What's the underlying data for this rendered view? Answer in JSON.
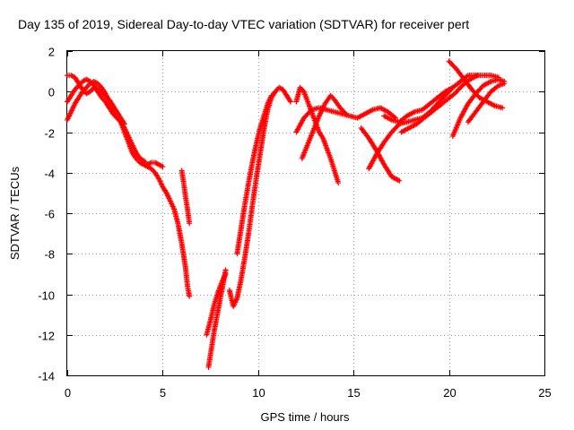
{
  "chart_data": {
    "type": "scatter",
    "title": "Day 135 of 2019, Sidereal Day-to-day VTEC variation (SDTVAR) for receiver pert",
    "xlabel": "GPS time / hours",
    "ylabel": "SDTVAR / TECUs",
    "xlim": [
      0,
      25
    ],
    "ylim": [
      -14,
      2
    ],
    "xticks": [
      0,
      5,
      10,
      15,
      20,
      25
    ],
    "yticks": [
      -14,
      -12,
      -10,
      -8,
      -6,
      -4,
      -2,
      0,
      2
    ],
    "grid": true,
    "marker": "plus",
    "color": "#ff0000",
    "traces": [
      [
        [
          0.0,
          -1.4
        ],
        [
          0.2,
          -1.0
        ],
        [
          0.4,
          -0.6
        ],
        [
          0.6,
          -0.3
        ],
        [
          0.8,
          0.0
        ],
        [
          1.0,
          0.2
        ],
        [
          1.2,
          0.4
        ],
        [
          1.4,
          0.5
        ],
        [
          1.6,
          0.4
        ],
        [
          1.8,
          0.2
        ],
        [
          2.0,
          -0.1
        ],
        [
          2.2,
          -0.5
        ],
        [
          2.4,
          -0.9
        ],
        [
          2.6,
          -1.2
        ],
        [
          2.8,
          -1.5
        ],
        [
          3.0,
          -2.0
        ],
        [
          3.2,
          -2.5
        ],
        [
          3.4,
          -3.0
        ],
        [
          3.6,
          -3.3
        ],
        [
          3.8,
          -3.5
        ],
        [
          4.0,
          -3.6
        ],
        [
          4.2,
          -3.7
        ],
        [
          4.4,
          -3.8
        ],
        [
          4.6,
          -4.0
        ],
        [
          4.8,
          -4.3
        ],
        [
          5.0,
          -4.7
        ],
        [
          5.2,
          -5.0
        ],
        [
          5.4,
          -5.4
        ],
        [
          5.6,
          -5.8
        ],
        [
          5.8,
          -6.5
        ],
        [
          6.0,
          -7.5
        ],
        [
          6.2,
          -8.7
        ],
        [
          6.3,
          -9.6
        ],
        [
          6.4,
          -10.1
        ]
      ],
      [
        [
          0.0,
          0.8
        ],
        [
          0.2,
          0.8
        ],
        [
          0.4,
          0.7
        ],
        [
          0.6,
          0.4
        ],
        [
          0.8,
          0.1
        ],
        [
          1.0,
          -0.1
        ],
        [
          1.2,
          0.0
        ],
        [
          1.4,
          0.2
        ],
        [
          1.6,
          0.0
        ],
        [
          1.8,
          -0.3
        ],
        [
          2.0,
          -0.5
        ],
        [
          2.2,
          -0.8
        ],
        [
          2.4,
          -1.1
        ],
        [
          2.6,
          -1.3
        ],
        [
          2.8,
          -1.5
        ],
        [
          3.0,
          -1.8
        ],
        [
          3.2,
          -2.2
        ],
        [
          3.4,
          -2.6
        ],
        [
          3.6,
          -3.0
        ],
        [
          3.8,
          -3.3
        ],
        [
          4.0,
          -3.4
        ],
        [
          4.2,
          -3.6
        ],
        [
          4.4,
          -3.5
        ],
        [
          4.6,
          -3.5
        ],
        [
          4.8,
          -3.6
        ],
        [
          5.0,
          -3.7
        ]
      ],
      [
        [
          0.0,
          -0.5
        ],
        [
          0.2,
          -0.2
        ],
        [
          0.4,
          0.1
        ],
        [
          0.6,
          0.3
        ],
        [
          0.8,
          0.5
        ],
        [
          1.0,
          0.6
        ],
        [
          1.2,
          0.5
        ],
        [
          1.4,
          0.3
        ],
        [
          1.6,
          0.1
        ],
        [
          1.8,
          0.0
        ],
        [
          2.0,
          -0.2
        ],
        [
          2.2,
          -0.4
        ],
        [
          2.4,
          -0.7
        ],
        [
          2.6,
          -1.0
        ],
        [
          2.8,
          -1.3
        ],
        [
          3.0,
          -1.6
        ]
      ],
      [
        [
          6.0,
          -3.9
        ],
        [
          6.1,
          -4.5
        ],
        [
          6.2,
          -5.2
        ],
        [
          6.3,
          -5.8
        ],
        [
          6.4,
          -6.5
        ]
      ],
      [
        [
          7.4,
          -13.6
        ],
        [
          7.5,
          -13.0
        ],
        [
          7.6,
          -12.4
        ],
        [
          7.7,
          -11.8
        ],
        [
          7.8,
          -11.3
        ],
        [
          7.9,
          -10.8
        ],
        [
          8.0,
          -10.3
        ],
        [
          8.1,
          -9.8
        ],
        [
          8.2,
          -9.3
        ],
        [
          8.3,
          -8.8
        ]
      ],
      [
        [
          7.3,
          -12.0
        ],
        [
          7.5,
          -11.3
        ],
        [
          7.7,
          -10.5
        ],
        [
          7.9,
          -9.9
        ],
        [
          8.1,
          -9.4
        ],
        [
          8.3,
          -9.0
        ]
      ],
      [
        [
          8.5,
          -9.8
        ],
        [
          8.7,
          -10.6
        ],
        [
          8.9,
          -10.2
        ],
        [
          9.1,
          -9.3
        ],
        [
          9.3,
          -8.2
        ],
        [
          9.5,
          -7.0
        ],
        [
          9.7,
          -5.6
        ],
        [
          9.9,
          -4.3
        ],
        [
          10.1,
          -3.1
        ],
        [
          10.3,
          -1.9
        ],
        [
          10.5,
          -0.9
        ],
        [
          10.7,
          -0.3
        ],
        [
          10.9,
          0.0
        ],
        [
          11.1,
          0.2
        ],
        [
          11.3,
          0.1
        ],
        [
          11.5,
          -0.2
        ],
        [
          11.7,
          -0.5
        ]
      ],
      [
        [
          8.9,
          -8.0
        ],
        [
          9.1,
          -6.8
        ],
        [
          9.3,
          -5.6
        ],
        [
          9.5,
          -4.5
        ],
        [
          9.7,
          -3.5
        ],
        [
          9.9,
          -2.6
        ],
        [
          10.1,
          -1.8
        ],
        [
          10.3,
          -1.2
        ],
        [
          10.5,
          -0.6
        ],
        [
          10.7,
          -0.2
        ]
      ],
      [
        [
          12.0,
          -0.5
        ],
        [
          12.2,
          0.2
        ],
        [
          12.4,
          0.0
        ],
        [
          12.6,
          -0.5
        ],
        [
          12.8,
          -1.0
        ],
        [
          13.0,
          -1.5
        ],
        [
          13.2,
          -2.0
        ],
        [
          13.4,
          -2.3
        ],
        [
          13.6,
          -2.8
        ],
        [
          13.8,
          -3.3
        ],
        [
          14.0,
          -3.9
        ],
        [
          14.2,
          -4.5
        ]
      ],
      [
        [
          12.3,
          -3.3
        ],
        [
          12.6,
          -2.6
        ],
        [
          12.9,
          -1.9
        ],
        [
          13.2,
          -1.2
        ],
        [
          13.5,
          -0.6
        ],
        [
          13.8,
          -0.2
        ],
        [
          14.0,
          -0.4
        ],
        [
          14.3,
          -0.8
        ],
        [
          14.6,
          -1.1
        ]
      ],
      [
        [
          12.0,
          -2.0
        ],
        [
          12.4,
          -1.3
        ],
        [
          12.8,
          -0.9
        ],
        [
          13.2,
          -0.8
        ],
        [
          13.6,
          -0.9
        ],
        [
          14.0,
          -1.0
        ],
        [
          14.4,
          -1.1
        ],
        [
          14.8,
          -1.2
        ],
        [
          15.2,
          -1.3
        ],
        [
          15.6,
          -1.1
        ],
        [
          16.0,
          -0.9
        ],
        [
          16.4,
          -0.8
        ],
        [
          16.8,
          -1.0
        ],
        [
          17.2,
          -1.3
        ]
      ],
      [
        [
          15.8,
          -3.8
        ],
        [
          16.2,
          -3.1
        ],
        [
          16.6,
          -2.5
        ],
        [
          17.0,
          -2.0
        ],
        [
          17.4,
          -1.6
        ],
        [
          17.8,
          -1.5
        ],
        [
          18.2,
          -1.4
        ],
        [
          18.6,
          -1.3
        ],
        [
          19.0,
          -1.0
        ],
        [
          19.4,
          -0.6
        ],
        [
          19.8,
          -0.2
        ],
        [
          20.2,
          0.2
        ],
        [
          20.6,
          0.5
        ],
        [
          21.0,
          0.8
        ],
        [
          21.4,
          0.8
        ],
        [
          21.8,
          0.8
        ],
        [
          22.2,
          0.8
        ],
        [
          22.6,
          0.7
        ]
      ],
      [
        [
          15.4,
          -1.8
        ],
        [
          15.8,
          -2.3
        ],
        [
          16.2,
          -2.9
        ],
        [
          16.6,
          -3.6
        ],
        [
          17.0,
          -4.2
        ],
        [
          17.4,
          -4.4
        ]
      ],
      [
        [
          16.6,
          -1.2
        ],
        [
          17.0,
          -1.4
        ],
        [
          17.4,
          -1.5
        ],
        [
          17.8,
          -1.2
        ],
        [
          18.2,
          -1.0
        ],
        [
          18.6,
          -0.9
        ],
        [
          19.0,
          -0.6
        ],
        [
          19.4,
          -0.3
        ],
        [
          19.8,
          0.0
        ],
        [
          20.2,
          0.2
        ]
      ],
      [
        [
          17.5,
          -2.0
        ],
        [
          17.9,
          -1.8
        ],
        [
          18.3,
          -1.6
        ],
        [
          18.7,
          -1.3
        ],
        [
          19.1,
          -1.0
        ],
        [
          19.5,
          -0.7
        ],
        [
          19.9,
          -0.4
        ],
        [
          20.3,
          -0.1
        ],
        [
          20.7,
          0.3
        ],
        [
          21.1,
          0.6
        ],
        [
          21.5,
          0.8
        ]
      ],
      [
        [
          20.0,
          1.5
        ],
        [
          20.4,
          1.1
        ],
        [
          20.8,
          0.6
        ],
        [
          21.2,
          0.1
        ],
        [
          21.6,
          -0.3
        ],
        [
          22.0,
          -0.5
        ],
        [
          22.4,
          -0.7
        ],
        [
          22.8,
          -0.8
        ]
      ],
      [
        [
          20.2,
          -2.2
        ],
        [
          20.6,
          -1.3
        ],
        [
          21.0,
          -0.6
        ],
        [
          21.4,
          -0.1
        ],
        [
          21.8,
          0.3
        ],
        [
          22.2,
          0.5
        ],
        [
          22.6,
          0.6
        ],
        [
          22.9,
          0.5
        ]
      ],
      [
        [
          21.0,
          -1.5
        ],
        [
          21.4,
          -1.0
        ],
        [
          21.8,
          -0.5
        ],
        [
          22.2,
          0.0
        ],
        [
          22.6,
          0.3
        ],
        [
          22.9,
          0.4
        ]
      ]
    ]
  }
}
